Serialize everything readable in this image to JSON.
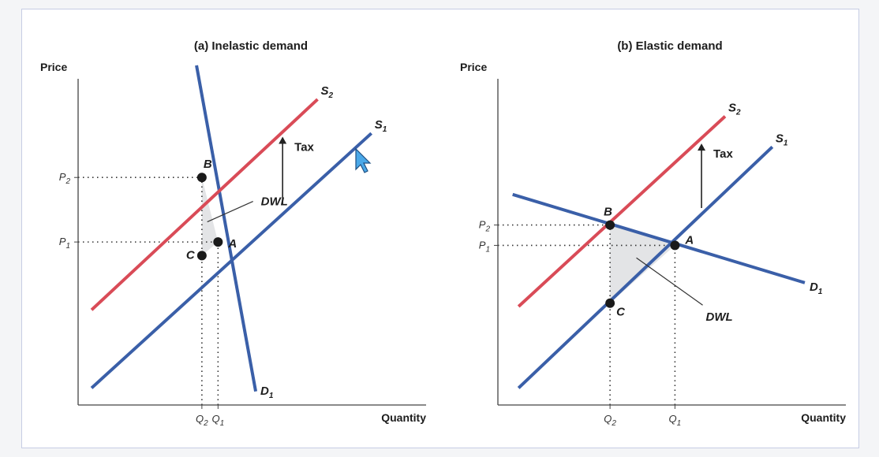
{
  "colors": {
    "demand": "#3a5fa8",
    "supply_before": "#3a5fa8",
    "supply_after": "#d94b57",
    "dwl_fill": "#e3e4e6",
    "axis": "#444444",
    "frame_border": "#c6cde4",
    "cursor": "#4aa8e8"
  },
  "cursor_icon": "mouse-pointer-icon",
  "chart_data": [
    {
      "type": "line",
      "title": "(a) Inelastic demand",
      "ylabel": "Price",
      "xlabel": "Quantity",
      "xlim": [
        0,
        10
      ],
      "ylim": [
        0,
        10
      ],
      "x_ticks": [
        {
          "base": "Q",
          "sub": "2",
          "value": 4.6
        },
        {
          "base": "Q",
          "sub": "1",
          "value": 5.2
        }
      ],
      "y_ticks": [
        {
          "base": "P",
          "sub": "2",
          "value": 6.7
        },
        {
          "base": "P",
          "sub": "1",
          "value": 4.8
        }
      ],
      "series": [
        {
          "role": "demand",
          "label": "D",
          "label_sub": "1",
          "points": [
            [
              4.4,
              10.0
            ],
            [
              6.6,
              0.4
            ]
          ]
        },
        {
          "role": "supply_after",
          "label": "S",
          "label_sub": "2",
          "points": [
            [
              0.5,
              2.8
            ],
            [
              8.9,
              9.0
            ]
          ]
        },
        {
          "role": "supply_before",
          "label": "S",
          "label_sub": "1",
          "points": [
            [
              0.5,
              0.5
            ],
            [
              10.9,
              8.0
            ]
          ]
        }
      ],
      "points": [
        {
          "label": "B",
          "x": 4.6,
          "y": 6.7
        },
        {
          "label": "A",
          "x": 5.2,
          "y": 4.8
        },
        {
          "label": "C",
          "x": 4.6,
          "y": 4.4
        }
      ],
      "annotations": {
        "tax": "Tax",
        "dwl": "DWL"
      },
      "tax_arrow": {
        "x": 7.6,
        "from_y": 5.9,
        "to_y": 7.9
      },
      "dwl_region": [
        [
          4.6,
          6.7
        ],
        [
          5.2,
          4.8
        ],
        [
          4.6,
          4.4
        ]
      ]
    },
    {
      "type": "line",
      "title": "(b) Elastic demand",
      "ylabel": "Price",
      "xlabel": "Quantity",
      "xlim": [
        0,
        10
      ],
      "ylim": [
        0,
        10
      ],
      "x_ticks": [
        {
          "base": "Q",
          "sub": "2",
          "value": 3.8
        },
        {
          "base": "Q",
          "sub": "1",
          "value": 6.0
        }
      ],
      "y_ticks": [
        {
          "base": "P",
          "sub": "2",
          "value": 5.3
        },
        {
          "base": "P",
          "sub": "1",
          "value": 4.7
        }
      ],
      "series": [
        {
          "role": "demand",
          "label": "D",
          "label_sub": "1",
          "points": [
            [
              0.5,
              6.2
            ],
            [
              10.4,
              3.6
            ]
          ]
        },
        {
          "role": "supply_after",
          "label": "S",
          "label_sub": "2",
          "points": [
            [
              0.7,
              2.9
            ],
            [
              7.7,
              8.5
            ]
          ]
        },
        {
          "role": "supply_before",
          "label": "S",
          "label_sub": "1",
          "points": [
            [
              0.7,
              0.5
            ],
            [
              9.3,
              7.6
            ]
          ]
        }
      ],
      "points": [
        {
          "label": "B",
          "x": 3.8,
          "y": 5.3
        },
        {
          "label": "A",
          "x": 6.0,
          "y": 4.7
        },
        {
          "label": "C",
          "x": 3.8,
          "y": 3.0
        }
      ],
      "annotations": {
        "tax": "Tax",
        "dwl": "DWL"
      },
      "tax_arrow": {
        "x": 6.9,
        "from_y": 5.8,
        "to_y": 7.7
      },
      "dwl_region": [
        [
          3.8,
          5.3
        ],
        [
          6.0,
          4.7
        ],
        [
          3.8,
          3.0
        ]
      ]
    }
  ]
}
